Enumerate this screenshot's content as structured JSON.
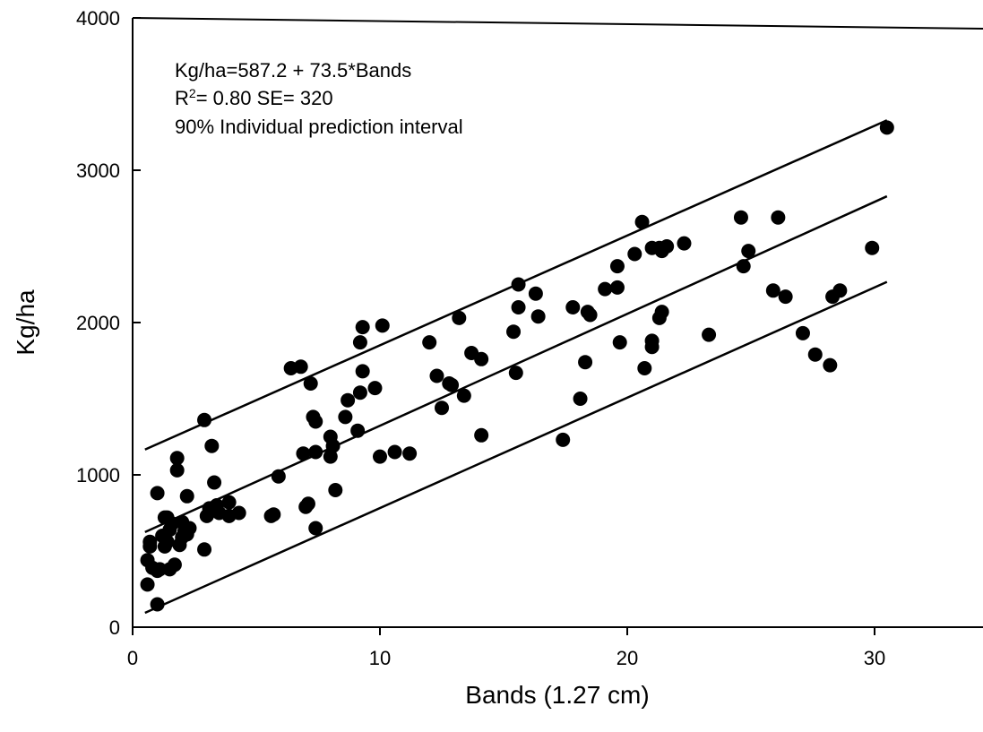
{
  "chart_data": {
    "type": "scatter",
    "title": "",
    "xlabel": "Bands (1.27 cm)",
    "ylabel": "Kg/ha",
    "xlim": [
      0,
      35
    ],
    "ylim": [
      0,
      4000
    ],
    "x_ticks": [
      0,
      10,
      20,
      30
    ],
    "y_ticks": [
      0,
      1000,
      2000,
      3000,
      4000
    ],
    "x_tick_labels": [
      "0",
      "10",
      "20",
      "30"
    ],
    "y_tick_labels": [
      "0",
      "1000",
      "2000",
      "3000",
      "4000"
    ],
    "grid": false,
    "annotations": {
      "equation": "Kg/ha=587.2 + 73.5*Bands",
      "r2_prefix": "R",
      "r2_superscript": "2",
      "r2_rest": "= 0.80  SE= 320",
      "interval_note": "90% Individual prediction interval"
    },
    "lines": [
      {
        "role": "upper",
        "x": [
          0.5,
          30.5
        ],
        "y": [
          1166,
          3328
        ]
      },
      {
        "role": "fit",
        "x": [
          0.5,
          30.5
        ],
        "y": [
          624,
          2829
        ]
      },
      {
        "role": "lower",
        "x": [
          0.5,
          30.5
        ],
        "y": [
          94,
          2267
        ]
      }
    ],
    "points": [
      [
        0.6,
        280
      ],
      [
        0.6,
        440
      ],
      [
        0.7,
        560
      ],
      [
        0.7,
        530
      ],
      [
        0.8,
        390
      ],
      [
        1.0,
        880
      ],
      [
        1.0,
        150
      ],
      [
        1.0,
        370
      ],
      [
        1.1,
        380
      ],
      [
        1.2,
        600
      ],
      [
        1.3,
        720
      ],
      [
        1.3,
        530
      ],
      [
        1.4,
        720
      ],
      [
        1.4,
        560
      ],
      [
        1.5,
        380
      ],
      [
        1.5,
        640
      ],
      [
        1.6,
        680
      ],
      [
        1.7,
        410
      ],
      [
        1.8,
        1110
      ],
      [
        1.8,
        1030
      ],
      [
        1.9,
        540
      ],
      [
        2.0,
        590
      ],
      [
        2.0,
        690
      ],
      [
        2.1,
        630
      ],
      [
        2.2,
        860
      ],
      [
        2.2,
        610
      ],
      [
        2.3,
        650
      ],
      [
        2.9,
        510
      ],
      [
        2.9,
        1360
      ],
      [
        3.0,
        730
      ],
      [
        3.1,
        780
      ],
      [
        3.2,
        1190
      ],
      [
        3.3,
        950
      ],
      [
        3.4,
        800
      ],
      [
        3.5,
        750
      ],
      [
        3.9,
        730
      ],
      [
        3.9,
        820
      ],
      [
        4.3,
        750
      ],
      [
        5.6,
        730
      ],
      [
        5.7,
        740
      ],
      [
        5.9,
        990
      ],
      [
        6.4,
        1700
      ],
      [
        6.8,
        1710
      ],
      [
        6.9,
        1140
      ],
      [
        7.0,
        790
      ],
      [
        7.1,
        810
      ],
      [
        7.2,
        1600
      ],
      [
        7.3,
        1380
      ],
      [
        7.4,
        1350
      ],
      [
        7.4,
        1150
      ],
      [
        7.4,
        650
      ],
      [
        8.0,
        1250
      ],
      [
        8.0,
        1120
      ],
      [
        8.1,
        1190
      ],
      [
        8.2,
        900
      ],
      [
        8.6,
        1380
      ],
      [
        8.7,
        1490
      ],
      [
        9.1,
        1290
      ],
      [
        9.2,
        1540
      ],
      [
        9.2,
        1870
      ],
      [
        9.3,
        1680
      ],
      [
        9.3,
        1970
      ],
      [
        9.8,
        1570
      ],
      [
        10.0,
        1120
      ],
      [
        10.1,
        1980
      ],
      [
        10.6,
        1150
      ],
      [
        11.2,
        1140
      ],
      [
        12.0,
        1870
      ],
      [
        12.3,
        1650
      ],
      [
        12.5,
        1440
      ],
      [
        12.8,
        1600
      ],
      [
        12.9,
        1590
      ],
      [
        13.2,
        2030
      ],
      [
        13.4,
        1520
      ],
      [
        13.7,
        1800
      ],
      [
        14.1,
        1760
      ],
      [
        14.1,
        1260
      ],
      [
        15.4,
        1940
      ],
      [
        15.5,
        1670
      ],
      [
        15.6,
        2100
      ],
      [
        15.6,
        2250
      ],
      [
        16.3,
        2190
      ],
      [
        16.4,
        2040
      ],
      [
        17.4,
        1230
      ],
      [
        17.8,
        2100
      ],
      [
        18.1,
        1500
      ],
      [
        18.3,
        1740
      ],
      [
        18.4,
        2070
      ],
      [
        18.5,
        2050
      ],
      [
        19.1,
        2220
      ],
      [
        19.6,
        2230
      ],
      [
        19.6,
        2370
      ],
      [
        19.7,
        1870
      ],
      [
        20.3,
        2450
      ],
      [
        20.6,
        2660
      ],
      [
        20.7,
        1700
      ],
      [
        21.0,
        1840
      ],
      [
        21.0,
        1880
      ],
      [
        21.0,
        2490
      ],
      [
        21.3,
        2490
      ],
      [
        21.3,
        2030
      ],
      [
        21.4,
        2070
      ],
      [
        21.4,
        2470
      ],
      [
        21.6,
        2500
      ],
      [
        22.3,
        2520
      ],
      [
        23.3,
        1920
      ],
      [
        24.6,
        2690
      ],
      [
        24.7,
        2370
      ],
      [
        24.9,
        2470
      ],
      [
        25.9,
        2210
      ],
      [
        26.1,
        2690
      ],
      [
        26.4,
        2170
      ],
      [
        27.1,
        1930
      ],
      [
        27.6,
        1790
      ],
      [
        28.2,
        1720
      ],
      [
        28.3,
        2170
      ],
      [
        28.6,
        2210
      ],
      [
        29.9,
        2490
      ],
      [
        30.5,
        3280
      ]
    ]
  }
}
